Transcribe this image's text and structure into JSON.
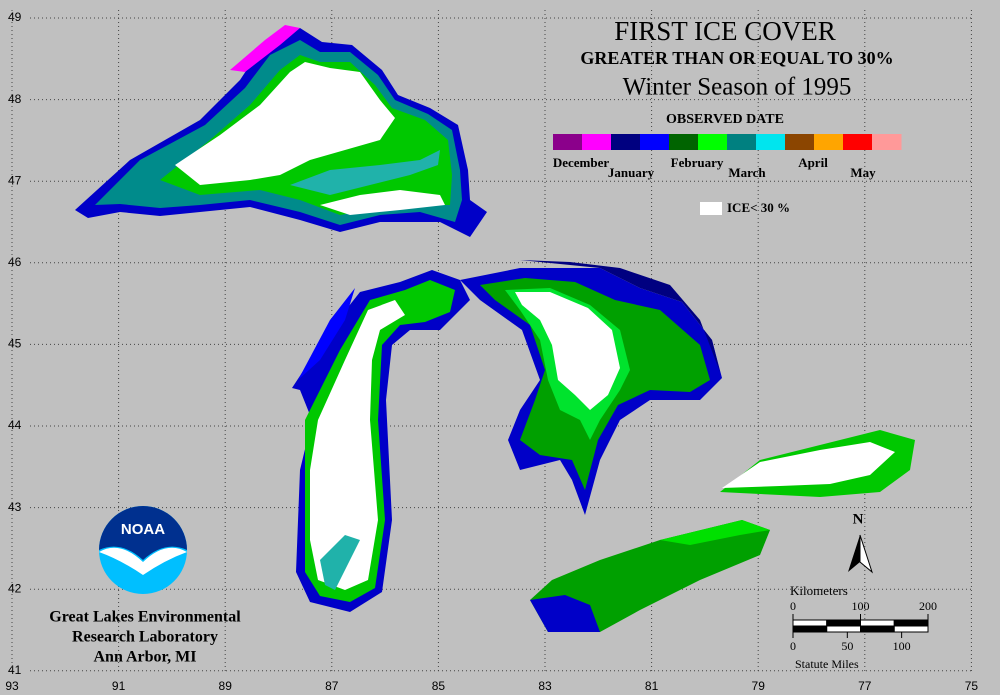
{
  "title": "FIRST ICE COVER",
  "subtitle": "GREATER THAN OR EQUAL TO 30%",
  "season": "Winter Season of 1995",
  "legend": {
    "title": "OBSERVED DATE",
    "months": [
      "December",
      "January",
      "February",
      "March",
      "April",
      "May"
    ],
    "colors": [
      [
        "#8b008b",
        "#ff00ff"
      ],
      [
        "#000080",
        "#0000ff"
      ],
      [
        "#006400",
        "#00ff00"
      ],
      [
        "#008080",
        "#00e5ee"
      ],
      [
        "#8b4500",
        "#ffa500"
      ],
      [
        "#ff0000",
        "#ff9999"
      ]
    ],
    "ice_label": "ICE< 30 %"
  },
  "latitudes": [
    49,
    48,
    47,
    46,
    45,
    44,
    43,
    42,
    41
  ],
  "longitudes": [
    93,
    91,
    89,
    87,
    85,
    83,
    81,
    79,
    77,
    75
  ],
  "north": "N",
  "scale": {
    "km_title": "Kilometers",
    "km_ticks": [
      0,
      100,
      200
    ],
    "mile_ticks": [
      0,
      50,
      100
    ],
    "mile_title": "Statute Miles"
  },
  "logo": "NOAA",
  "credit": [
    "Great Lakes Environmental",
    "Research Laboratory",
    "Ann Arbor, MI"
  ]
}
